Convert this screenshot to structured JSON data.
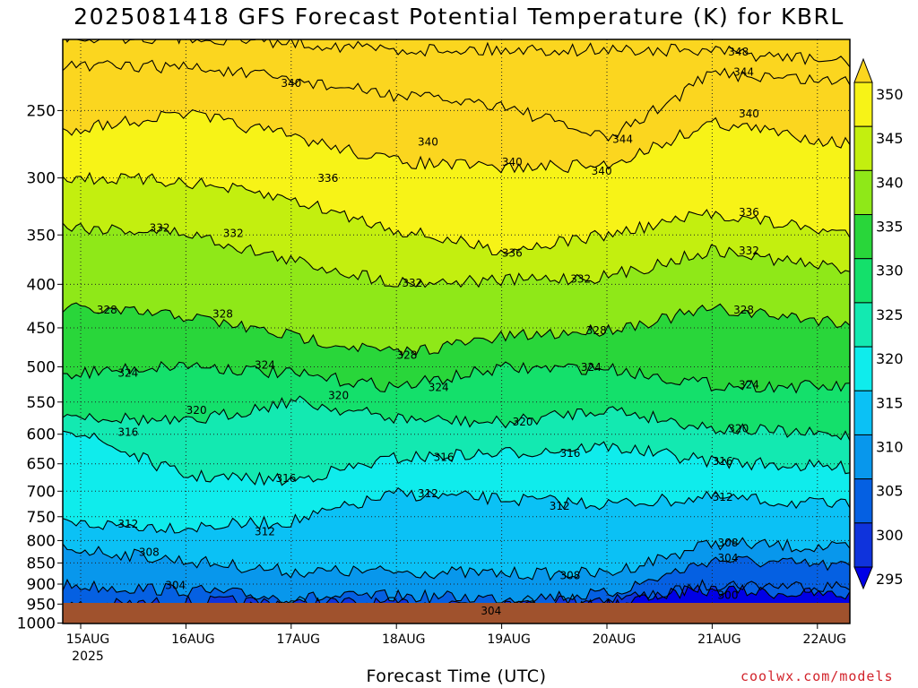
{
  "chart_data": {
    "type": "heatmap",
    "title": "2025081418 GFS Forecast Potential Temperature (K) for KBRL",
    "xlabel": "Forecast Time (UTC)",
    "ylabel": "",
    "y_ticks": [
      250,
      300,
      350,
      400,
      450,
      500,
      550,
      600,
      650,
      700,
      750,
      800,
      850,
      900,
      950,
      1000
    ],
    "y_scale": "log-pressure (inverted)",
    "ylim": [
      1050,
      200
    ],
    "x_ticks": [
      {
        "label": "15AUG",
        "sub": "2025"
      },
      {
        "label": "16AUG",
        "sub": ""
      },
      {
        "label": "17AUG",
        "sub": ""
      },
      {
        "label": "18AUG",
        "sub": ""
      },
      {
        "label": "19AUG",
        "sub": ""
      },
      {
        "label": "20AUG",
        "sub": ""
      },
      {
        "label": "21AUG",
        "sub": ""
      },
      {
        "label": "22AUG",
        "sub": ""
      }
    ],
    "colorbar": {
      "labels": [
        350,
        345,
        340,
        335,
        330,
        325,
        320,
        315,
        310,
        305,
        300,
        295
      ],
      "colors": [
        "#fbd61f",
        "#f7f317",
        "#c3ef0f",
        "#8fe818",
        "#29d63a",
        "#14e06b",
        "#13e9b1",
        "#0fecec",
        "#0bc1f5",
        "#0897ec",
        "#0560e2",
        "#0f33dc",
        "#0000e6"
      ]
    },
    "contour_levels": [
      296,
      300,
      304,
      308,
      312,
      316,
      320,
      324,
      328,
      332,
      336,
      340,
      344,
      348
    ],
    "contour_labels": [
      {
        "value": "348",
        "time": "21AUG+0.25",
        "pressure": 213
      },
      {
        "value": "344",
        "time": "21AUG+0.30",
        "pressure": 225
      },
      {
        "value": "340",
        "time": "15AUG+2.0",
        "pressure": 232
      },
      {
        "value": "344",
        "time": "20AUG+0.15",
        "pressure": 270
      },
      {
        "value": "340",
        "time": "21AUG+0.35",
        "pressure": 252
      },
      {
        "value": "340",
        "time": "17AUG+1.3",
        "pressure": 272
      },
      {
        "value": "340",
        "time": "19AUG+0.1",
        "pressure": 287
      },
      {
        "value": "340",
        "time": "19AUG+0.95",
        "pressure": 294
      },
      {
        "value": "336",
        "time": "17AUG+0.35",
        "pressure": 300
      },
      {
        "value": "336",
        "time": "21AUG+0.35",
        "pressure": 329
      },
      {
        "value": "332",
        "time": "15AUG+0.75",
        "pressure": 343
      },
      {
        "value": "332",
        "time": "16AUG+0.45",
        "pressure": 348
      },
      {
        "value": "336",
        "time": "19AUG+0.1",
        "pressure": 367
      },
      {
        "value": "332",
        "time": "21AUG+0.35",
        "pressure": 365
      },
      {
        "value": "332",
        "time": "19AUG+0.75",
        "pressure": 394
      },
      {
        "value": "332",
        "time": "18AUG+0.15",
        "pressure": 398
      },
      {
        "value": "328",
        "time": "15AUG+0.25",
        "pressure": 428
      },
      {
        "value": "328",
        "time": "16AUG+0.35",
        "pressure": 433
      },
      {
        "value": "328",
        "time": "21AUG+0.3",
        "pressure": 428
      },
      {
        "value": "328",
        "time": "20AUG-0.1",
        "pressure": 453
      },
      {
        "value": "328",
        "time": "18AUG+0.1",
        "pressure": 484
      },
      {
        "value": "324",
        "time": "16AUG+0.75",
        "pressure": 497
      },
      {
        "value": "324",
        "time": "15AUG+0.45",
        "pressure": 508
      },
      {
        "value": "324",
        "time": "19AUG+0.85",
        "pressure": 500
      },
      {
        "value": "324",
        "time": "21AUG+0.35",
        "pressure": 524
      },
      {
        "value": "320",
        "time": "17AUG+0.45",
        "pressure": 540
      },
      {
        "value": "324",
        "time": "18AUG+0.4",
        "pressure": 528
      },
      {
        "value": "320",
        "time": "16AUG+0.1",
        "pressure": 562
      },
      {
        "value": "320",
        "time": "19AUG+0.2",
        "pressure": 580
      },
      {
        "value": "320",
        "time": "21AUG+0.25",
        "pressure": 590
      },
      {
        "value": "316",
        "time": "15AUG+0.45",
        "pressure": 596
      },
      {
        "value": "316",
        "time": "18AUG+0.45",
        "pressure": 638
      },
      {
        "value": "316",
        "time": "19AUG+0.65",
        "pressure": 631
      },
      {
        "value": "316",
        "time": "21AUG+0.1",
        "pressure": 645
      },
      {
        "value": "316",
        "time": "16AUG+0.95",
        "pressure": 675
      },
      {
        "value": "312",
        "time": "18AUG+0.3",
        "pressure": 704
      },
      {
        "value": "312",
        "time": "19AUG+0.55",
        "pressure": 728
      },
      {
        "value": "312",
        "time": "21AUG+0.1",
        "pressure": 711
      },
      {
        "value": "312",
        "time": "15AUG+0.45",
        "pressure": 764
      },
      {
        "value": "312",
        "time": "16AUG+0.75",
        "pressure": 780
      },
      {
        "value": "308",
        "time": "21AUG+0.15",
        "pressure": 804
      },
      {
        "value": "304",
        "time": "21AUG+0.15",
        "pressure": 838
      },
      {
        "value": "308",
        "time": "15AUG+0.65",
        "pressure": 825
      },
      {
        "value": "308",
        "time": "19AUG+0.65",
        "pressure": 878
      },
      {
        "value": "304",
        "time": "15AUG+0.9",
        "pressure": 902
      },
      {
        "value": "300",
        "time": "21AUG+0.15",
        "pressure": 927
      },
      {
        "value": "304",
        "time": "18AUG+0.9",
        "pressure": 967
      }
    ]
  },
  "chart_title": "2025081418 GFS Forecast Potential Temperature (K) for KBRL",
  "x_axis_label": "Forecast Time (UTC)",
  "credit": "coolwx.com/models"
}
